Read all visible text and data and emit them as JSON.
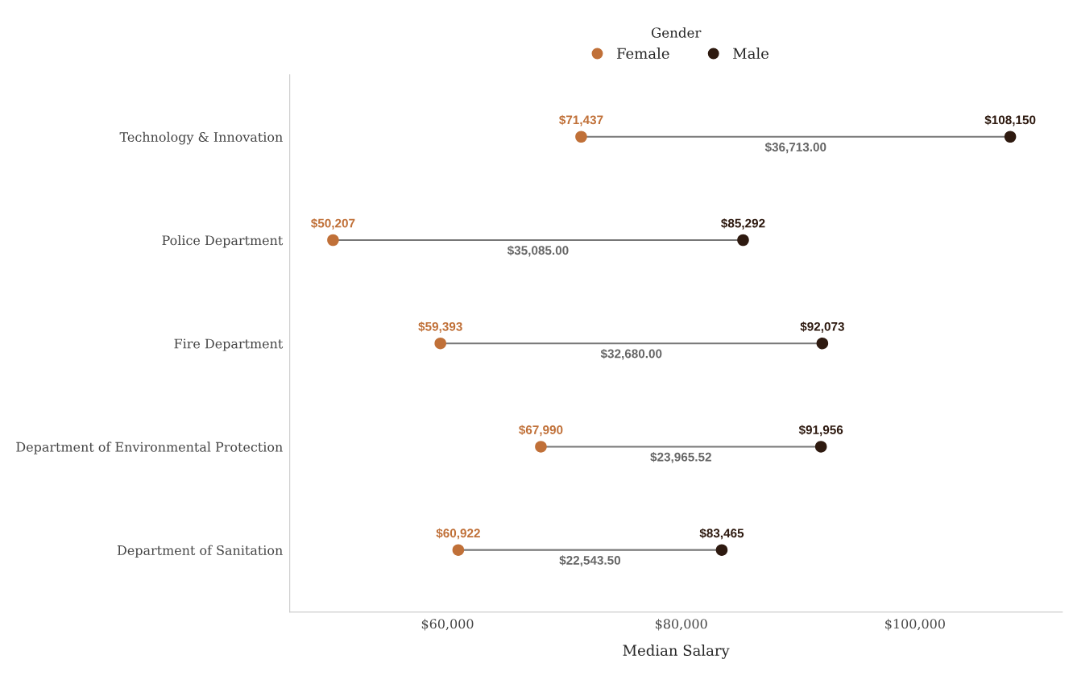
{
  "chart_data": {
    "type": "scatter",
    "orientation": "horizontal",
    "xlabel": "Median Salary",
    "legend_title": "Gender",
    "legend": "top",
    "categories": [
      "Technology & Innovation",
      "Police Department",
      "Fire Department",
      "Department of Environmental Protection",
      "Department of Sanitation"
    ],
    "series": [
      {
        "name": "Female",
        "color": "#c07038",
        "values": [
          71437,
          50207,
          59393,
          67990,
          60922
        ],
        "value_labels": [
          "$71,437",
          "$50,207",
          "$59,393",
          "$67,990",
          "$60,922"
        ]
      },
      {
        "name": "Male",
        "color": "#2e1a10",
        "values": [
          108150,
          85292,
          92073,
          91956,
          83465
        ],
        "value_labels": [
          "$108,150",
          "$85,292",
          "$92,073",
          "$91,956",
          "$83,465"
        ]
      }
    ],
    "annotations": [
      "$36,713.00",
      "$35,085.00",
      "$32,680.00",
      "$23,965.52",
      "$22,543.50"
    ],
    "xlim": [
      46500,
      112600
    ],
    "xticks": [
      {
        "value": 60000,
        "label": "$60,000"
      },
      {
        "value": 80000,
        "label": "$80,000"
      },
      {
        "value": 100000,
        "label": "$100,000"
      }
    ],
    "grid": false,
    "marker": "circle"
  }
}
